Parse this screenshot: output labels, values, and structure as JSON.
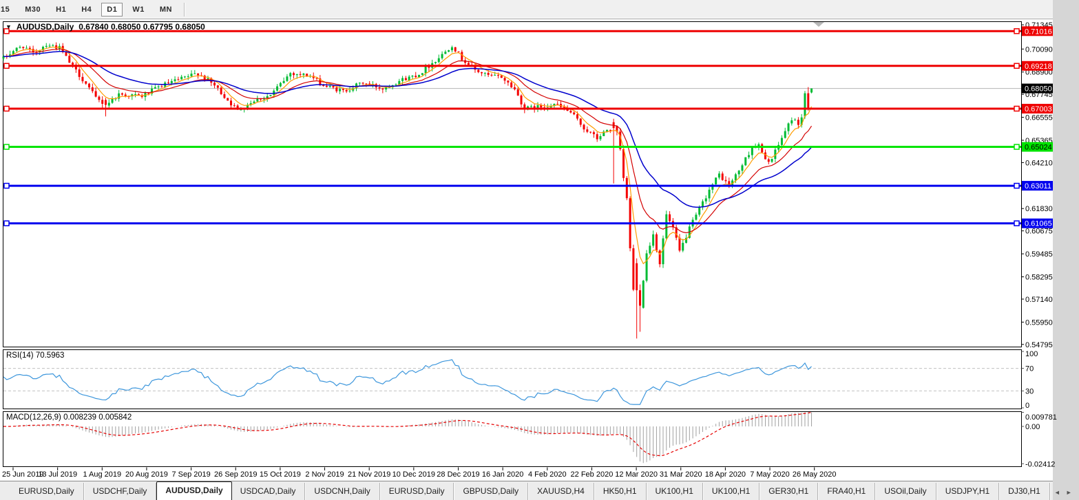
{
  "toolbar": {
    "timeframes": [
      {
        "label": "15",
        "active": false
      },
      {
        "label": "M30",
        "active": false
      },
      {
        "label": "H1",
        "active": false
      },
      {
        "label": "H4",
        "active": false
      },
      {
        "label": "D1",
        "active": true
      },
      {
        "label": "W1",
        "active": false
      },
      {
        "label": "MN",
        "active": false
      }
    ]
  },
  "main_chart": {
    "dropdown_icon": "▼",
    "title": "AUDUSD,Daily",
    "ohlc_text": "0.67840 0.68050 0.67795 0.68050"
  },
  "rsi_pane": {
    "label": "RSI(14) 70.5963"
  },
  "macd_pane": {
    "label": "MACD(12,26,9) 0.008239 0.005842"
  },
  "date_axis": {
    "labels": [
      "25 Jun 2019",
      "13 Jul 2019",
      "1 Aug 2019",
      "20 Aug 2019",
      "7 Sep 2019",
      "26 Sep 2019",
      "15 Oct 2019",
      "2 Nov 2019",
      "21 Nov 2019",
      "10 Dec 2019",
      "28 Dec 2019",
      "16 Jan 2020",
      "4 Feb 2020",
      "22 Feb 2020",
      "12 Mar 2020",
      "31 Mar 2020",
      "18 Apr 2020",
      "7 May 2020",
      "26 May 2020"
    ]
  },
  "tab_bar": {
    "tabs": [
      "EURUSD,Daily",
      "USDCHF,Daily",
      "AUDUSD,Daily",
      "USDCAD,Daily",
      "USDCNH,Daily",
      "EURUSD,Daily",
      "GBPUSD,Daily",
      "XAUUSD,H4",
      "HK50,H1",
      "UK100,H1",
      "UK100,H1",
      "GER30,H1",
      "FRA40,H1",
      "USOil,Daily",
      "USDJPY,H1",
      "DJ30,H1"
    ],
    "active_index": 2,
    "scroll_left_icon": "◄",
    "scroll_right_icon": "►"
  },
  "chart_data": {
    "type": "candlestick",
    "symbol": "AUDUSD",
    "timeframe": "Daily",
    "current_bar": {
      "open": 0.6784,
      "high": 0.6805,
      "low": 0.67795,
      "close": 0.6805
    },
    "current_price": {
      "value": 0.6805,
      "label": "0.68050",
      "badge_bg": "#000000",
      "badge_fg": "#ffffff",
      "line_color": "#b4b4b4"
    },
    "y_axis": {
      "ticks": [
        "0.71345",
        "0.70090",
        "0.68900",
        "0.67745",
        "0.66555",
        "0.65365",
        "0.64210",
        "0.61830",
        "0.60675",
        "0.59485",
        "0.58295",
        "0.57140",
        "0.55950",
        "0.54795"
      ]
    },
    "levels": [
      {
        "price": 0.71016,
        "label": "0.71016",
        "color": "#ee0000",
        "text_color": "#ffffff"
      },
      {
        "price": 0.69218,
        "label": "0.69218",
        "color": "#ee0000",
        "text_color": "#ffffff"
      },
      {
        "price": 0.67003,
        "label": "0.67003",
        "color": "#ee0000",
        "text_color": "#ffffff"
      },
      {
        "price": 0.65024,
        "label": "0.65024",
        "color": "#00e400",
        "text_color": "#000000"
      },
      {
        "price": 0.63011,
        "label": "0.63011",
        "color": "#0000ee",
        "text_color": "#ffffff"
      },
      {
        "price": 0.61065,
        "label": "0.61065",
        "color": "#0000ee",
        "text_color": "#ffffff"
      }
    ],
    "candle_up_color": "#00bе3c",
    "candle_colors": {
      "up": "#00bb33",
      "down": "#f40000"
    },
    "candles_approx": {
      "count": 246,
      "close_anchors": [
        [
          0,
          0.696
        ],
        [
          3,
          0.7
        ],
        [
          6,
          0.7025
        ],
        [
          9,
          0.6985
        ],
        [
          13,
          0.7035
        ],
        [
          17,
          0.7015
        ],
        [
          20,
          0.694
        ],
        [
          25,
          0.683
        ],
        [
          28,
          0.6755
        ],
        [
          31,
          0.672
        ],
        [
          35,
          0.6775
        ],
        [
          42,
          0.6765
        ],
        [
          48,
          0.682
        ],
        [
          54,
          0.6855
        ],
        [
          59,
          0.6885
        ],
        [
          64,
          0.682
        ],
        [
          68,
          0.6745
        ],
        [
          71,
          0.669
        ],
        [
          76,
          0.6745
        ],
        [
          81,
          0.677
        ],
        [
          87,
          0.6885
        ],
        [
          93,
          0.687
        ],
        [
          97,
          0.682
        ],
        [
          103,
          0.679
        ],
        [
          109,
          0.6835
        ],
        [
          115,
          0.6805
        ],
        [
          120,
          0.6845
        ],
        [
          126,
          0.688
        ],
        [
          133,
          0.698
        ],
        [
          136,
          0.703
        ],
        [
          139,
          0.696
        ],
        [
          143,
          0.69
        ],
        [
          147,
          0.687
        ],
        [
          151,
          0.6865
        ],
        [
          155,
          0.68
        ],
        [
          158,
          0.67
        ],
        [
          163,
          0.671
        ],
        [
          167,
          0.6725
        ],
        [
          172,
          0.668
        ],
        [
          176,
          0.66
        ],
        [
          180,
          0.6545
        ],
        [
          183,
          0.659
        ],
        [
          185,
          0.66
        ],
        [
          186,
          0.6575
        ],
        [
          187,
          0.648
        ],
        [
          188,
          0.634
        ],
        [
          189,
          0.623
        ],
        [
          190,
          0.598
        ],
        [
          191,
          0.576
        ],
        [
          192,
          0.576
        ],
        [
          193,
          0.568
        ],
        [
          194,
          0.582
        ],
        [
          195,
          0.595
        ],
        [
          197,
          0.605
        ],
        [
          199,
          0.59
        ],
        [
          201,
          0.615
        ],
        [
          203,
          0.608
        ],
        [
          205,
          0.596
        ],
        [
          208,
          0.608
        ],
        [
          211,
          0.618
        ],
        [
          214,
          0.628
        ],
        [
          217,
          0.636
        ],
        [
          220,
          0.63
        ],
        [
          223,
          0.638
        ],
        [
          227,
          0.65
        ],
        [
          229,
          0.651
        ],
        [
          231,
          0.643
        ],
        [
          233,
          0.644
        ],
        [
          236,
          0.655
        ],
        [
          239,
          0.665
        ],
        [
          241,
          0.662
        ],
        [
          242,
          0.666
        ],
        [
          245,
          0.6805
        ]
      ],
      "overrides": [
        {
          "i": 31,
          "open": 0.6745,
          "high": 0.6756,
          "low": 0.666,
          "close": 0.672
        },
        {
          "i": 185,
          "open": 0.663,
          "high": 0.6648,
          "low": 0.6313,
          "close": 0.66
        },
        {
          "i": 192,
          "open": 0.59,
          "high": 0.5925,
          "low": 0.551,
          "close": 0.576
        },
        {
          "i": 193,
          "open": 0.576,
          "high": 0.579,
          "low": 0.5545,
          "close": 0.568
        },
        {
          "i": 243,
          "open": 0.666,
          "high": 0.6792,
          "low": 0.6648,
          "close": 0.678
        },
        {
          "i": 244,
          "open": 0.678,
          "high": 0.6812,
          "low": 0.669,
          "close": 0.67
        },
        {
          "i": 245,
          "open": 0.6784,
          "high": 0.6805,
          "low": 0.67795,
          "close": 0.6805
        }
      ]
    },
    "moving_averages": [
      {
        "name": "fast",
        "period": 6,
        "color": "#ff9c00"
      },
      {
        "name": "medium",
        "period": 16,
        "color": "#d40000"
      },
      {
        "name": "slow",
        "period": 34,
        "color": "#0000cd"
      }
    ],
    "indicators": {
      "rsi": {
        "period": 14,
        "value": 70.5963,
        "levels": [
          70,
          30
        ],
        "axis_ticks": [
          100,
          70,
          30,
          0
        ],
        "line_color": "#3c96dc",
        "level_color": "#c0c0c0"
      },
      "macd": {
        "fast": 12,
        "slow": 26,
        "signal": 9,
        "macd_value": 0.008239,
        "signal_value": 0.005842,
        "axis_ticks": [
          {
            "v": 0.009781,
            "label": "0.009781"
          },
          {
            "v": 0,
            "label": "0.00"
          },
          {
            "v": -0.02412,
            "label": "-0.02412"
          }
        ],
        "histogram_color": "#a0a0a0",
        "signal_color": "#e60000"
      }
    }
  }
}
